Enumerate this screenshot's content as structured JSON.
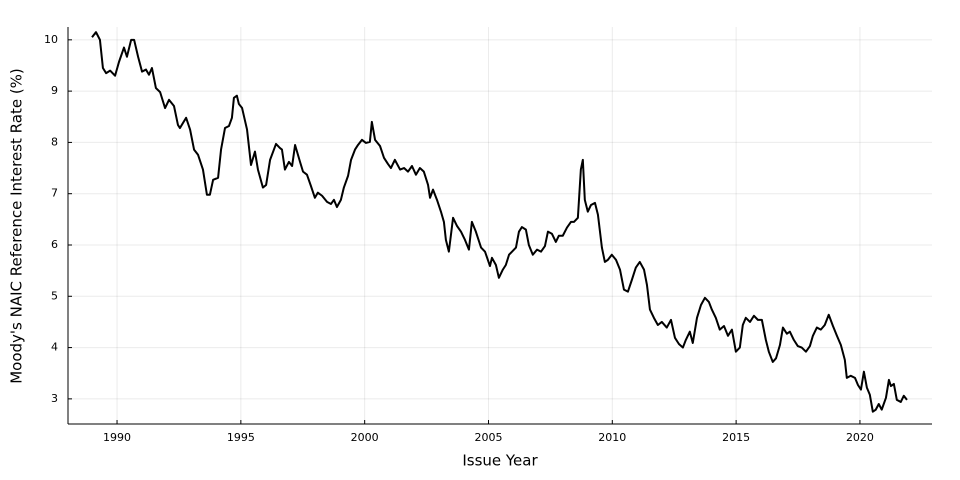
{
  "chart_data": {
    "type": "line",
    "xlabel": "Issue Year",
    "ylabel": "Moody's NAIC Reference Interest Rate (%)",
    "color": "#000000",
    "grid": true,
    "xlim": [
      1988.02,
      2022.91
    ],
    "ylim": [
      2.51,
      10.25
    ],
    "xticks": [
      1990,
      1995,
      2000,
      2005,
      2010,
      2015,
      2020
    ],
    "yticks": [
      3,
      4,
      5,
      6,
      7,
      8,
      9,
      10
    ],
    "x": [
      1988.99,
      1989.15,
      1989.31,
      1989.43,
      1989.56,
      1989.72,
      1989.92,
      1990.08,
      1990.28,
      1990.4,
      1990.57,
      1990.69,
      1990.85,
      1991.01,
      1991.17,
      1991.29,
      1991.41,
      1991.57,
      1991.74,
      1991.94,
      1992.1,
      1992.3,
      1992.46,
      1992.54,
      1992.79,
      1992.95,
      1993.11,
      1993.27,
      1993.47,
      1993.63,
      1993.75,
      1993.88,
      1994.08,
      1994.2,
      1994.36,
      1994.52,
      1994.64,
      1994.72,
      1994.84,
      1994.92,
      1995.05,
      1995.25,
      1995.41,
      1995.57,
      1995.69,
      1995.89,
      1996.02,
      1996.18,
      1996.42,
      1996.58,
      1996.66,
      1996.78,
      1996.94,
      1997.07,
      1997.19,
      1997.39,
      1997.51,
      1997.67,
      1997.83,
      1997.99,
      1998.11,
      1998.28,
      1998.48,
      1998.64,
      1998.76,
      1998.88,
      1999.04,
      1999.16,
      1999.33,
      1999.45,
      1999.61,
      1999.73,
      1999.89,
      2000.05,
      2000.21,
      2000.29,
      2000.42,
      2000.62,
      2000.78,
      2000.94,
      2001.06,
      2001.22,
      2001.43,
      2001.59,
      2001.75,
      2001.91,
      2002.07,
      2002.23,
      2002.39,
      2002.56,
      2002.64,
      2002.76,
      2002.92,
      2003.08,
      2003.2,
      2003.28,
      2003.4,
      2003.57,
      2003.73,
      2003.89,
      2004.05,
      2004.21,
      2004.33,
      2004.49,
      2004.7,
      2004.86,
      2005.06,
      2005.14,
      2005.3,
      2005.42,
      2005.58,
      2005.7,
      2005.83,
      2005.95,
      2006.11,
      2006.23,
      2006.35,
      2006.51,
      2006.63,
      2006.79,
      2006.96,
      2007.12,
      2007.28,
      2007.4,
      2007.56,
      2007.72,
      2007.84,
      2008.0,
      2008.17,
      2008.33,
      2008.45,
      2008.61,
      2008.73,
      2008.81,
      2008.89,
      2009.01,
      2009.14,
      2009.3,
      2009.42,
      2009.58,
      2009.7,
      2009.82,
      2009.98,
      2010.15,
      2010.31,
      2010.47,
      2010.63,
      2010.79,
      2010.95,
      2011.11,
      2011.28,
      2011.4,
      2011.52,
      2011.68,
      2011.84,
      2012.0,
      2012.2,
      2012.37,
      2012.53,
      2012.69,
      2012.85,
      2012.97,
      2013.13,
      2013.25,
      2013.42,
      2013.58,
      2013.74,
      2013.9,
      2014.02,
      2014.18,
      2014.34,
      2014.51,
      2014.67,
      2014.83,
      2014.99,
      2015.15,
      2015.27,
      2015.39,
      2015.56,
      2015.72,
      2015.88,
      2016.04,
      2016.2,
      2016.32,
      2016.48,
      2016.61,
      2016.77,
      2016.89,
      2017.05,
      2017.17,
      2017.33,
      2017.49,
      2017.65,
      2017.82,
      2017.98,
      2018.1,
      2018.26,
      2018.42,
      2018.58,
      2018.74,
      2018.91,
      2019.07,
      2019.23,
      2019.39,
      2019.47,
      2019.63,
      2019.8,
      2019.92,
      2020.04,
      2020.16,
      2020.28,
      2020.4,
      2020.52,
      2020.64,
      2020.76,
      2020.88,
      2021.05,
      2021.17,
      2021.25,
      2021.37,
      2021.49,
      2021.65,
      2021.77,
      2021.9
    ],
    "values": [
      10.05,
      10.15,
      10.0,
      9.45,
      9.35,
      9.4,
      9.3,
      9.57,
      9.85,
      9.67,
      10.0,
      10.0,
      9.67,
      9.38,
      9.42,
      9.32,
      9.45,
      9.06,
      8.98,
      8.67,
      8.83,
      8.71,
      8.34,
      8.28,
      8.48,
      8.25,
      7.86,
      7.76,
      7.47,
      6.98,
      6.98,
      7.27,
      7.31,
      7.86,
      8.28,
      8.32,
      8.48,
      8.87,
      8.91,
      8.75,
      8.67,
      8.25,
      7.56,
      7.82,
      7.47,
      7.12,
      7.17,
      7.66,
      7.97,
      7.89,
      7.86,
      7.47,
      7.62,
      7.54,
      7.95,
      7.62,
      7.43,
      7.37,
      7.15,
      6.92,
      7.02,
      6.96,
      6.84,
      6.8,
      6.88,
      6.74,
      6.88,
      7.12,
      7.35,
      7.66,
      7.86,
      7.95,
      8.05,
      7.99,
      8.01,
      8.4,
      8.05,
      7.93,
      7.7,
      7.58,
      7.5,
      7.66,
      7.47,
      7.5,
      7.43,
      7.54,
      7.37,
      7.5,
      7.43,
      7.17,
      6.92,
      7.08,
      6.88,
      6.65,
      6.45,
      6.1,
      5.87,
      6.53,
      6.37,
      6.26,
      6.1,
      5.91,
      6.45,
      6.26,
      5.95,
      5.87,
      5.59,
      5.75,
      5.61,
      5.36,
      5.52,
      5.61,
      5.81,
      5.87,
      5.95,
      6.26,
      6.35,
      6.3,
      6.0,
      5.81,
      5.91,
      5.87,
      5.98,
      6.26,
      6.22,
      6.06,
      6.18,
      6.18,
      6.34,
      6.45,
      6.45,
      6.53,
      7.47,
      7.66,
      6.88,
      6.65,
      6.78,
      6.82,
      6.59,
      5.95,
      5.67,
      5.71,
      5.81,
      5.71,
      5.52,
      5.13,
      5.09,
      5.32,
      5.56,
      5.67,
      5.52,
      5.22,
      4.74,
      4.58,
      4.44,
      4.5,
      4.39,
      4.54,
      4.19,
      4.07,
      4.0,
      4.15,
      4.31,
      4.09,
      4.58,
      4.83,
      4.97,
      4.89,
      4.74,
      4.58,
      4.35,
      4.42,
      4.23,
      4.35,
      3.92,
      4.0,
      4.44,
      4.58,
      4.5,
      4.62,
      4.54,
      4.54,
      4.15,
      3.92,
      3.72,
      3.79,
      4.05,
      4.39,
      4.27,
      4.31,
      4.15,
      4.03,
      4.0,
      3.92,
      4.03,
      4.23,
      4.39,
      4.35,
      4.44,
      4.64,
      4.42,
      4.23,
      4.05,
      3.76,
      3.41,
      3.45,
      3.41,
      3.27,
      3.18,
      3.53,
      3.22,
      3.08,
      2.75,
      2.79,
      2.9,
      2.79,
      3.02,
      3.37,
      3.25,
      3.29,
      2.98,
      2.94,
      3.06,
      2.98
    ]
  }
}
